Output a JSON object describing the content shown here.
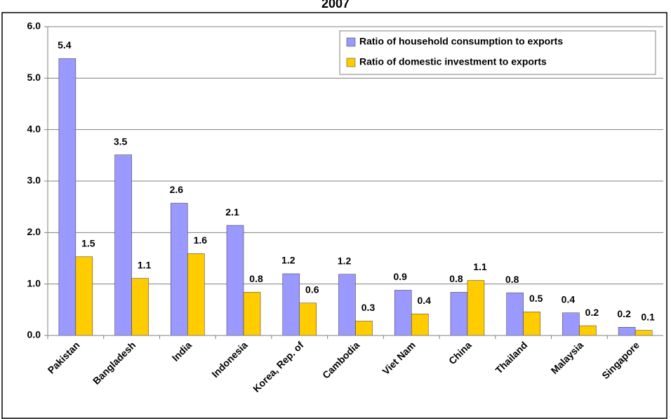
{
  "chart_data": {
    "type": "bar",
    "title": "2007",
    "categories": [
      "Pakistan",
      "Bangladesh",
      "India",
      "Indonesia",
      "Korea, Rep. of",
      "Cambodia",
      "Viet Nam",
      "China",
      "Thailand",
      "Malaysia",
      "Singapore"
    ],
    "series": [
      {
        "name": "Ratio of household consumption to exports",
        "color": "#9999ff",
        "values": [
          5.38,
          3.51,
          2.57,
          2.14,
          1.2,
          1.19,
          0.88,
          0.84,
          0.83,
          0.44,
          0.16
        ],
        "value_labels": [
          "5.4",
          "3.5",
          "2.6",
          "2.1",
          "1.2",
          "1.2",
          "0.9",
          "0.8",
          "0.8",
          "0.4",
          "0.2"
        ]
      },
      {
        "name": "Ratio of domestic investment to exports",
        "color": "#ffcc00",
        "values": [
          1.53,
          1.11,
          1.59,
          0.84,
          0.63,
          0.28,
          0.42,
          1.07,
          0.46,
          0.19,
          0.1
        ],
        "value_labels": [
          "1.5",
          "1.1",
          "1.6",
          "0.8",
          "0.6",
          "0.3",
          "0.4",
          "1.1",
          "0.5",
          "0.2",
          "0.1"
        ]
      }
    ],
    "ylim": [
      0,
      6
    ],
    "yticks": [
      {
        "value": 0,
        "label": "0.0"
      },
      {
        "value": 1,
        "label": "1.0"
      },
      {
        "value": 2,
        "label": "2.0"
      },
      {
        "value": 3,
        "label": "3.0"
      },
      {
        "value": 4,
        "label": "4.0"
      },
      {
        "value": 5,
        "label": "5.0"
      },
      {
        "value": 6,
        "label": "6.0"
      }
    ],
    "grid": true,
    "legend": "top-right"
  }
}
